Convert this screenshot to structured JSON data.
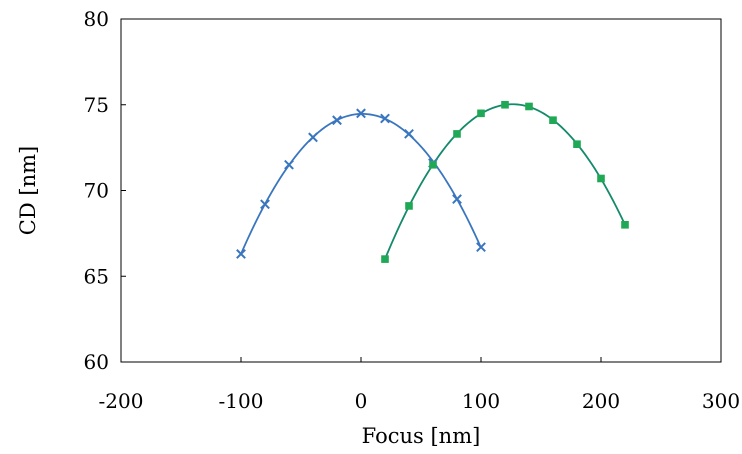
{
  "chart_data": {
    "type": "scatter",
    "title": "",
    "xlabel": "Focus [nm]",
    "ylabel": "CD [nm]",
    "xlim": [
      -200,
      300
    ],
    "ylim": [
      60,
      80
    ],
    "xticks": [
      "-200",
      "-100",
      "0",
      "100",
      "200",
      "300"
    ],
    "yticks": [
      "60",
      "65",
      "70",
      "75",
      "80"
    ],
    "grid": false,
    "legend": "none",
    "series": [
      {
        "marker": "x",
        "color": "#3a76bf",
        "trend": "polynomial-fit",
        "points": [
          {
            "x": -100,
            "y": 66.3
          },
          {
            "x": -80,
            "y": 69.2
          },
          {
            "x": -60,
            "y": 71.5
          },
          {
            "x": -40,
            "y": 73.1
          },
          {
            "x": -20,
            "y": 74.1
          },
          {
            "x": 0,
            "y": 74.5
          },
          {
            "x": 20,
            "y": 74.2
          },
          {
            "x": 40,
            "y": 73.3
          },
          {
            "x": 60,
            "y": 71.6
          },
          {
            "x": 80,
            "y": 69.5
          },
          {
            "x": 100,
            "y": 66.7
          }
        ]
      },
      {
        "marker": "square",
        "color": "#1fa855",
        "line_color": "#138a6a",
        "trend": "polynomial-fit",
        "points": [
          {
            "x": 20,
            "y": 66.0
          },
          {
            "x": 40,
            "y": 69.1
          },
          {
            "x": 60,
            "y": 71.5
          },
          {
            "x": 80,
            "y": 73.3
          },
          {
            "x": 100,
            "y": 74.5
          },
          {
            "x": 120,
            "y": 75.0
          },
          {
            "x": 140,
            "y": 74.9
          },
          {
            "x": 160,
            "y": 74.1
          },
          {
            "x": 180,
            "y": 72.7
          },
          {
            "x": 200,
            "y": 70.7
          },
          {
            "x": 220,
            "y": 68.0
          }
        ]
      }
    ]
  }
}
